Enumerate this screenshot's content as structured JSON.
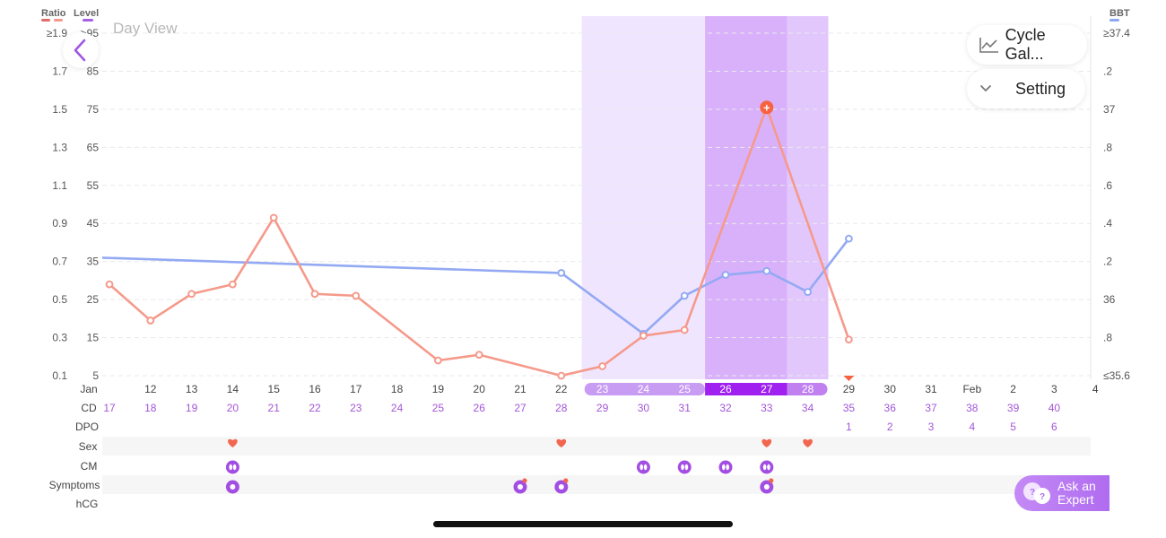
{
  "header": {
    "day_view_label": "Day View",
    "legend_left": [
      {
        "label": "Ratio",
        "color": "#e36a6a"
      },
      {
        "label": "Level",
        "color": "#a560e8"
      }
    ],
    "legend_right": {
      "label": "BBT",
      "color": "#8ea7f5"
    }
  },
  "buttons": {
    "cycle_gallery": "Cycle Gal...",
    "setting": "Setting",
    "ask_expert_line1": "Ask an",
    "ask_expert_line2": "Expert"
  },
  "icons": {
    "back": "chevron-left-icon",
    "cycle_gallery": "line-chart-icon",
    "setting": "chevron-down-icon",
    "ask_expert": "chat-bubbles-icon"
  },
  "colors": {
    "ratio_line": "#f59a8b",
    "bbt_line": "#93a9f3",
    "fertile_light": "#f0e5ff",
    "fertile_mid": "#e2c7fd",
    "ovulation": "#d9b1fb",
    "heart": "#f2664f",
    "marker": "#a34ee3",
    "cd_text": "#a356d8",
    "today_badge": "#f7623f"
  },
  "axes": {
    "ratio_ticks": [
      "≥1.9",
      "1.7",
      "1.5",
      "1.3",
      "1.1",
      "0.9",
      "0.7",
      "0.5",
      "0.3",
      "0.1"
    ],
    "level_ticks": [
      ">95",
      "85",
      "75",
      "65",
      "55",
      "45",
      "35",
      "25",
      "15",
      "5"
    ],
    "bbt_ticks": [
      "≥37.4",
      ".2",
      "37",
      ".8",
      ".6",
      ".4",
      ".2",
      "36",
      ".8",
      "≤35.6"
    ]
  },
  "rows": {
    "month_label": "Jan",
    "dates": [
      "12",
      "13",
      "14",
      "15",
      "16",
      "17",
      "18",
      "19",
      "20",
      "21",
      "22",
      "23",
      "24",
      "25",
      "26",
      "27",
      "28",
      "29",
      "30",
      "31",
      "Feb",
      "2",
      "3",
      "4"
    ],
    "cd_label": "CD",
    "cd": [
      "17",
      "18",
      "19",
      "20",
      "21",
      "22",
      "23",
      "24",
      "25",
      "26",
      "27",
      "28",
      "29",
      "30",
      "31",
      "32",
      "33",
      "34",
      "35",
      "36",
      "37",
      "38",
      "39",
      "40"
    ],
    "dpo_label": "DPO",
    "dpo": [
      "1",
      "2",
      "3",
      "4",
      "5",
      "6"
    ],
    "sex_label": "Sex",
    "cm_label": "CM",
    "symptoms_label": "Symptoms",
    "hcg_label": "hCG"
  },
  "chart_data": {
    "type": "line",
    "x": [
      "11",
      "12",
      "13",
      "14",
      "15",
      "16",
      "17",
      "18",
      "19",
      "20",
      "21",
      "22",
      "23",
      "24",
      "25",
      "26",
      "27",
      "28",
      "29"
    ],
    "series": [
      {
        "name": "Ratio",
        "values": [
          0.58,
          0.39,
          0.53,
          0.58,
          0.93,
          0.53,
          0.52,
          null,
          0.18,
          0.21,
          null,
          0.1,
          0.15,
          0.31,
          0.34,
          null,
          1.51,
          null,
          0.29
        ]
      },
      {
        "name": "BBT",
        "values": [
          36.22,
          null,
          null,
          null,
          null,
          null,
          null,
          null,
          null,
          null,
          null,
          36.14,
          null,
          35.82,
          36.02,
          36.13,
          36.15,
          36.04,
          36.32
        ]
      }
    ],
    "ylim_ratio": [
      0.1,
      1.9
    ],
    "ylim_bbt": [
      35.6,
      37.4
    ],
    "events": {
      "sex": [
        "14",
        "22",
        "27",
        "28"
      ],
      "cm": [
        "14",
        "24",
        "25",
        "26",
        "27"
      ],
      "symptoms": [
        "14",
        "21",
        "22",
        "27"
      ]
    }
  }
}
